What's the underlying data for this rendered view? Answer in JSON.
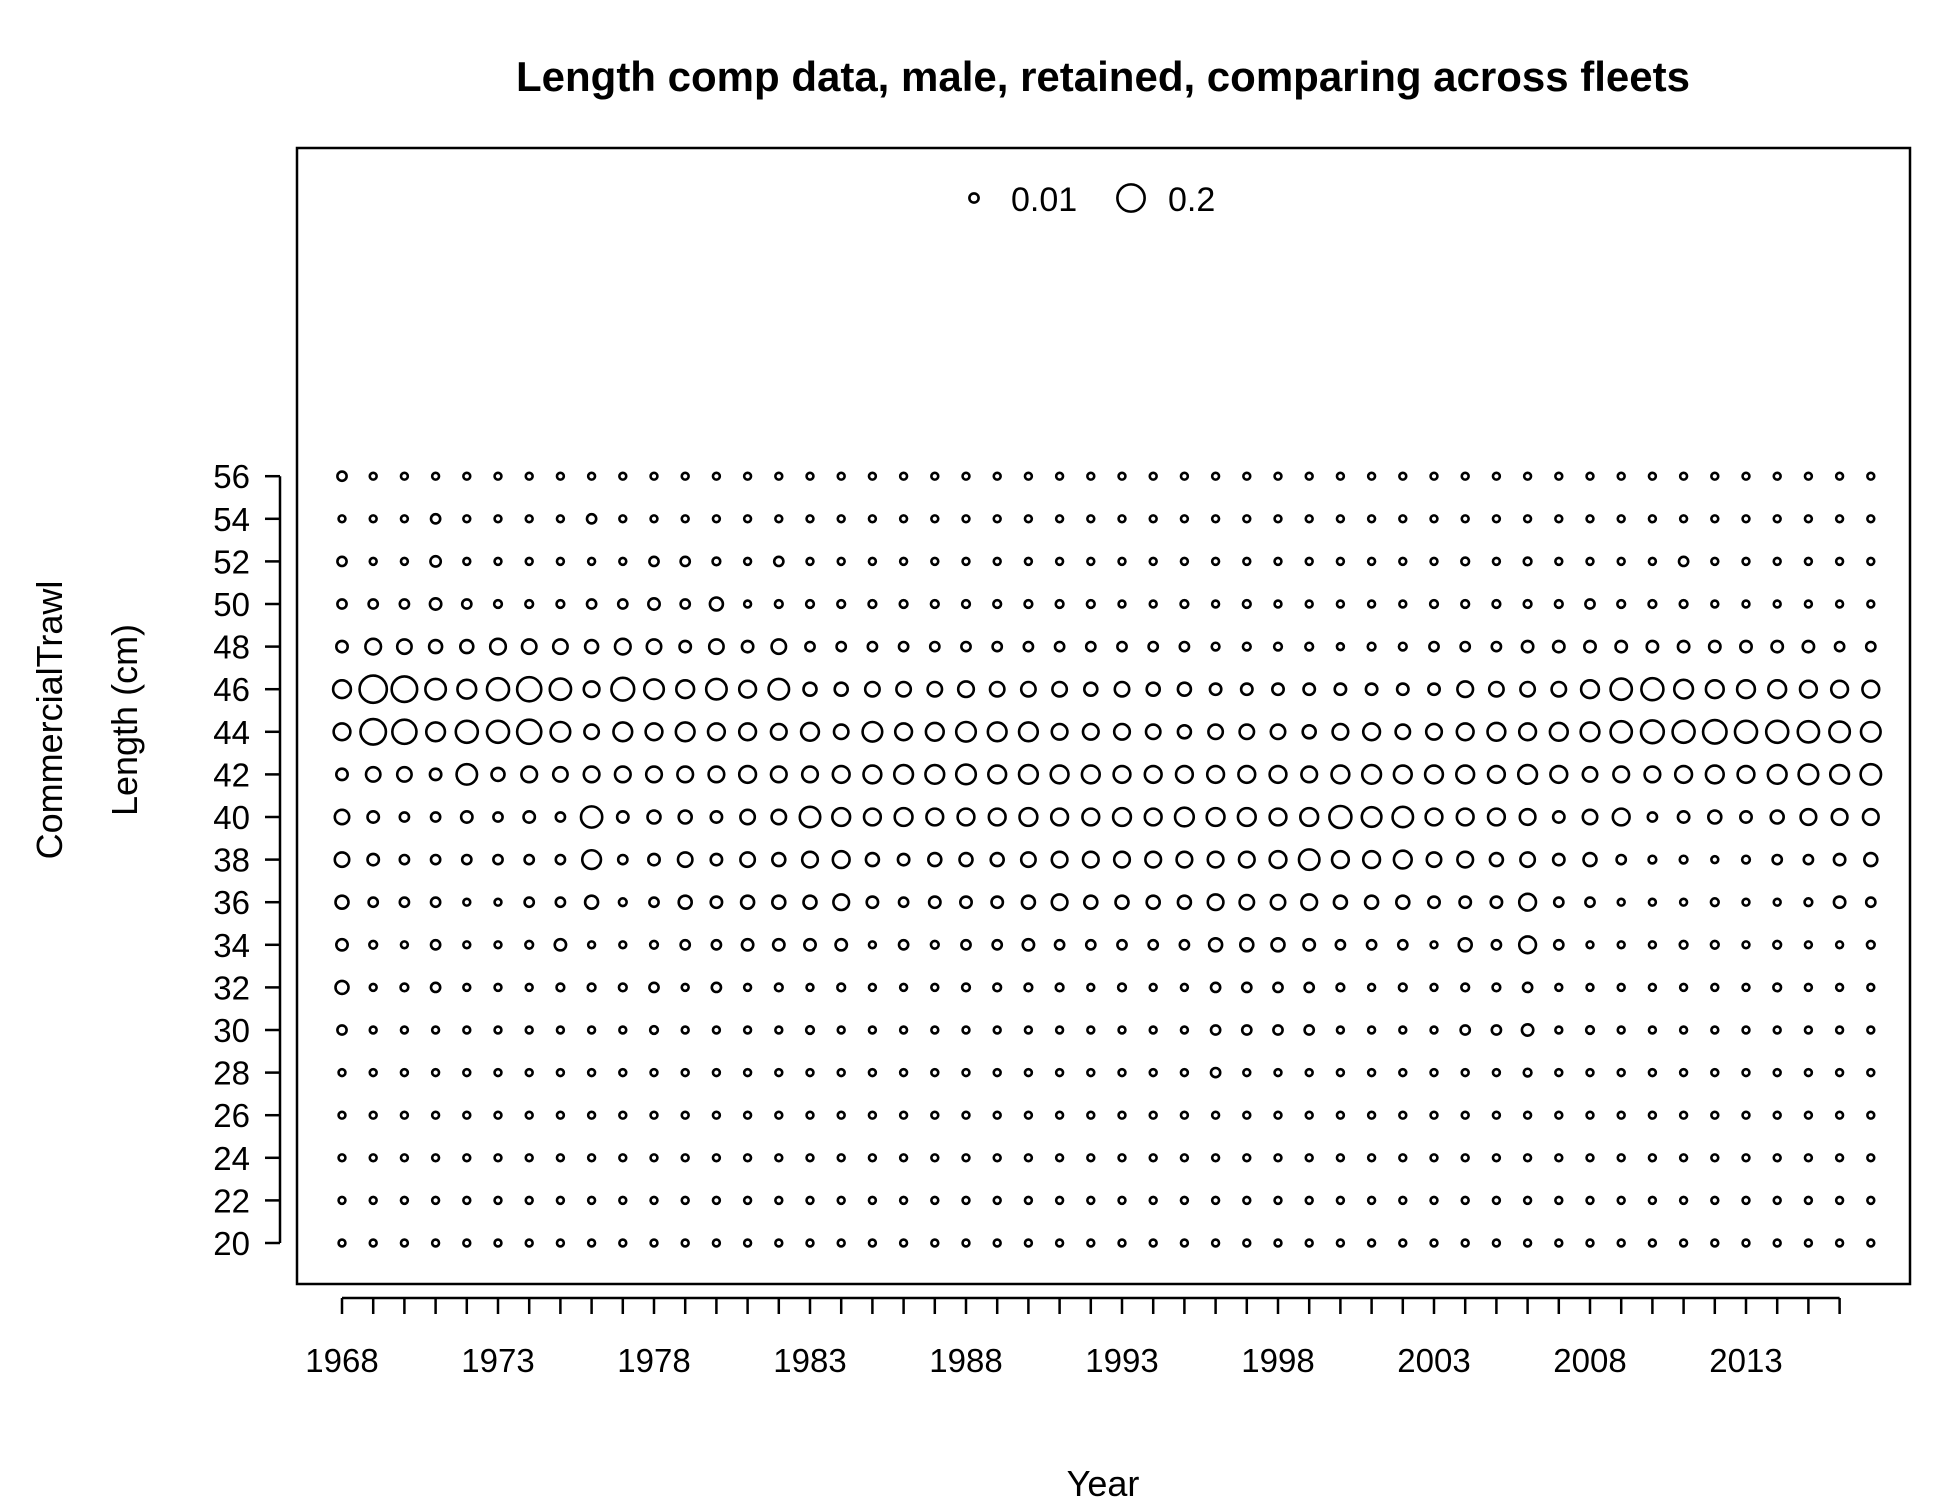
{
  "chart_data": {
    "type": "scatter",
    "subtype": "bubble",
    "title": "Length comp data, male, retained, comparing across fleets",
    "xlabel": "Year",
    "ylabel": "Length (cm)",
    "fleet_label": "CommercialTrawl",
    "xticks": [
      "1968",
      "1973",
      "1978",
      "1983",
      "1988",
      "1993",
      "1998",
      "2003",
      "2008",
      "2013"
    ],
    "yticks": [
      "20",
      "22",
      "24",
      "26",
      "28",
      "30",
      "32",
      "34",
      "36",
      "38",
      "40",
      "42",
      "44",
      "46",
      "48",
      "50",
      "52",
      "54",
      "56"
    ],
    "xlim": [
      1967.5,
      2018.5
    ],
    "length_bins": [
      20,
      22,
      24,
      26,
      28,
      30,
      32,
      34,
      36,
      38,
      40,
      42,
      44,
      46,
      48,
      50,
      52,
      54,
      56
    ],
    "years": [
      1968,
      1969,
      1970,
      1971,
      1972,
      1973,
      1974,
      1975,
      1976,
      1977,
      1978,
      1979,
      1980,
      1981,
      1982,
      1983,
      1984,
      1985,
      1986,
      1987,
      1988,
      1989,
      1990,
      1991,
      1992,
      1993,
      1994,
      1995,
      1996,
      1997,
      1998,
      1999,
      2000,
      2001,
      2002,
      2003,
      2004,
      2005,
      2006,
      2007,
      2008,
      2009,
      2010,
      2011,
      2012,
      2013,
      2014,
      2015,
      2016,
      2017
    ],
    "legend": {
      "placement": "top",
      "entries": [
        {
          "label": "0.01",
          "value": 0.01
        },
        {
          "label": "0.2",
          "value": 0.2
        }
      ]
    },
    "proportion_rows": {
      "56": [
        0.01,
        0.003,
        0.003,
        0.003,
        0.003,
        0.003,
        0.003,
        0.003,
        0.003,
        0.003,
        0.003,
        0.003,
        0.003,
        0.003,
        0.003,
        0.003,
        0.003,
        0.003,
        0.003,
        0.003,
        0.003,
        0.003,
        0.003,
        0.003,
        0.003,
        0.003,
        0.003,
        0.003,
        0.003,
        0.003,
        0.003,
        0.003,
        0.003,
        0.003,
        0.003,
        0.003,
        0.003,
        0.003,
        0.003,
        0.003,
        0.003,
        0.003,
        0.003,
        0.003,
        0.003,
        0.003,
        0.003,
        0.003,
        0.003,
        0.003
      ],
      "54": [
        0.003,
        0.003,
        0.003,
        0.01,
        0.003,
        0.003,
        0.003,
        0.003,
        0.01,
        0.003,
        0.003,
        0.003,
        0.003,
        0.003,
        0.003,
        0.003,
        0.003,
        0.003,
        0.003,
        0.003,
        0.003,
        0.003,
        0.003,
        0.003,
        0.003,
        0.003,
        0.003,
        0.003,
        0.003,
        0.003,
        0.003,
        0.003,
        0.003,
        0.003,
        0.003,
        0.003,
        0.003,
        0.003,
        0.003,
        0.003,
        0.003,
        0.003,
        0.003,
        0.003,
        0.003,
        0.003,
        0.003,
        0.003,
        0.003,
        0.003
      ],
      "52": [
        0.01,
        0.003,
        0.003,
        0.015,
        0.003,
        0.003,
        0.003,
        0.003,
        0.003,
        0.003,
        0.01,
        0.01,
        0.005,
        0.003,
        0.01,
        0.003,
        0.003,
        0.003,
        0.003,
        0.003,
        0.003,
        0.003,
        0.003,
        0.003,
        0.003,
        0.003,
        0.003,
        0.003,
        0.003,
        0.003,
        0.003,
        0.003,
        0.003,
        0.003,
        0.003,
        0.003,
        0.005,
        0.003,
        0.005,
        0.003,
        0.003,
        0.003,
        0.003,
        0.01,
        0.003,
        0.003,
        0.003,
        0.003,
        0.003,
        0.003
      ],
      "50": [
        0.01,
        0.01,
        0.01,
        0.02,
        0.01,
        0.005,
        0.005,
        0.005,
        0.01,
        0.01,
        0.02,
        0.01,
        0.03,
        0.003,
        0.005,
        0.005,
        0.005,
        0.005,
        0.005,
        0.005,
        0.005,
        0.005,
        0.005,
        0.005,
        0.005,
        0.003,
        0.003,
        0.005,
        0.003,
        0.005,
        0.003,
        0.003,
        0.003,
        0.003,
        0.003,
        0.005,
        0.005,
        0.005,
        0.005,
        0.005,
        0.01,
        0.005,
        0.005,
        0.005,
        0.003,
        0.003,
        0.003,
        0.003,
        0.003,
        0.003
      ],
      "48": [
        0.02,
        0.05,
        0.04,
        0.03,
        0.03,
        0.05,
        0.04,
        0.04,
        0.03,
        0.05,
        0.04,
        0.02,
        0.04,
        0.02,
        0.04,
        0.01,
        0.01,
        0.01,
        0.01,
        0.01,
        0.01,
        0.01,
        0.01,
        0.01,
        0.01,
        0.01,
        0.01,
        0.01,
        0.005,
        0.005,
        0.005,
        0.005,
        0.003,
        0.005,
        0.005,
        0.01,
        0.01,
        0.01,
        0.02,
        0.02,
        0.02,
        0.02,
        0.02,
        0.02,
        0.02,
        0.02,
        0.02,
        0.02,
        0.01,
        0.01
      ],
      "46": [
        0.07,
        0.2,
        0.17,
        0.1,
        0.08,
        0.12,
        0.15,
        0.11,
        0.05,
        0.13,
        0.09,
        0.07,
        0.1,
        0.06,
        0.1,
        0.03,
        0.03,
        0.04,
        0.04,
        0.04,
        0.05,
        0.04,
        0.04,
        0.04,
        0.03,
        0.04,
        0.03,
        0.03,
        0.02,
        0.02,
        0.02,
        0.02,
        0.02,
        0.02,
        0.02,
        0.02,
        0.05,
        0.04,
        0.04,
        0.04,
        0.07,
        0.11,
        0.12,
        0.08,
        0.07,
        0.07,
        0.07,
        0.06,
        0.06,
        0.06
      ],
      "44": [
        0.06,
        0.17,
        0.15,
        0.08,
        0.12,
        0.12,
        0.15,
        0.09,
        0.04,
        0.08,
        0.06,
        0.08,
        0.06,
        0.06,
        0.05,
        0.07,
        0.04,
        0.09,
        0.06,
        0.07,
        0.09,
        0.08,
        0.08,
        0.05,
        0.05,
        0.05,
        0.04,
        0.03,
        0.04,
        0.04,
        0.04,
        0.03,
        0.05,
        0.06,
        0.04,
        0.05,
        0.06,
        0.07,
        0.06,
        0.07,
        0.08,
        0.11,
        0.13,
        0.12,
        0.14,
        0.12,
        0.12,
        0.11,
        0.1,
        0.09
      ],
      "42": [
        0.02,
        0.04,
        0.04,
        0.02,
        0.1,
        0.03,
        0.05,
        0.04,
        0.05,
        0.05,
        0.05,
        0.05,
        0.05,
        0.06,
        0.05,
        0.05,
        0.06,
        0.07,
        0.08,
        0.08,
        0.09,
        0.07,
        0.08,
        0.07,
        0.07,
        0.06,
        0.06,
        0.06,
        0.06,
        0.06,
        0.06,
        0.05,
        0.07,
        0.08,
        0.07,
        0.07,
        0.07,
        0.06,
        0.08,
        0.06,
        0.04,
        0.05,
        0.05,
        0.06,
        0.07,
        0.06,
        0.08,
        0.09,
        0.08,
        0.1
      ],
      "40": [
        0.04,
        0.02,
        0.01,
        0.01,
        0.02,
        0.01,
        0.02,
        0.01,
        0.11,
        0.02,
        0.03,
        0.03,
        0.02,
        0.04,
        0.04,
        0.1,
        0.07,
        0.06,
        0.07,
        0.06,
        0.06,
        0.06,
        0.07,
        0.06,
        0.06,
        0.07,
        0.06,
        0.08,
        0.07,
        0.07,
        0.06,
        0.07,
        0.12,
        0.09,
        0.1,
        0.06,
        0.06,
        0.06,
        0.05,
        0.02,
        0.04,
        0.06,
        0.01,
        0.02,
        0.03,
        0.02,
        0.03,
        0.05,
        0.05,
        0.05
      ],
      "38": [
        0.04,
        0.02,
        0.01,
        0.01,
        0.01,
        0.01,
        0.01,
        0.01,
        0.08,
        0.01,
        0.02,
        0.04,
        0.02,
        0.04,
        0.03,
        0.05,
        0.06,
        0.03,
        0.02,
        0.03,
        0.03,
        0.03,
        0.04,
        0.05,
        0.05,
        0.05,
        0.05,
        0.05,
        0.05,
        0.05,
        0.06,
        0.1,
        0.06,
        0.06,
        0.07,
        0.04,
        0.05,
        0.03,
        0.04,
        0.02,
        0.03,
        0.01,
        0.005,
        0.005,
        0.003,
        0.005,
        0.01,
        0.01,
        0.02,
        0.03
      ],
      "36": [
        0.03,
        0.01,
        0.01,
        0.01,
        0.003,
        0.003,
        0.01,
        0.01,
        0.03,
        0.005,
        0.01,
        0.03,
        0.02,
        0.03,
        0.03,
        0.03,
        0.05,
        0.02,
        0.01,
        0.02,
        0.02,
        0.02,
        0.03,
        0.05,
        0.03,
        0.03,
        0.03,
        0.03,
        0.05,
        0.04,
        0.04,
        0.05,
        0.03,
        0.03,
        0.03,
        0.02,
        0.02,
        0.02,
        0.06,
        0.01,
        0.01,
        0.003,
        0.003,
        0.003,
        0.005,
        0.003,
        0.003,
        0.005,
        0.02,
        0.01
      ],
      "34": [
        0.02,
        0.005,
        0.003,
        0.01,
        0.003,
        0.003,
        0.005,
        0.02,
        0.003,
        0.003,
        0.005,
        0.01,
        0.01,
        0.02,
        0.02,
        0.02,
        0.02,
        0.003,
        0.01,
        0.005,
        0.01,
        0.01,
        0.02,
        0.01,
        0.01,
        0.01,
        0.01,
        0.01,
        0.03,
        0.03,
        0.03,
        0.02,
        0.01,
        0.01,
        0.01,
        0.003,
        0.03,
        0.01,
        0.06,
        0.01,
        0.003,
        0.003,
        0.003,
        0.005,
        0.005,
        0.003,
        0.005,
        0.003,
        0.003,
        0.005
      ],
      "32": [
        0.03,
        0.003,
        0.005,
        0.01,
        0.003,
        0.003,
        0.003,
        0.005,
        0.005,
        0.005,
        0.01,
        0.003,
        0.01,
        0.003,
        0.005,
        0.003,
        0.005,
        0.003,
        0.003,
        0.003,
        0.005,
        0.005,
        0.005,
        0.005,
        0.003,
        0.005,
        0.003,
        0.003,
        0.01,
        0.01,
        0.01,
        0.01,
        0.005,
        0.003,
        0.005,
        0.003,
        0.005,
        0.005,
        0.01,
        0.003,
        0.003,
        0.003,
        0.003,
        0.003,
        0.003,
        0.003,
        0.005,
        0.003,
        0.003,
        0.003
      ],
      "30": [
        0.01,
        0.003,
        0.003,
        0.003,
        0.003,
        0.003,
        0.003,
        0.003,
        0.003,
        0.003,
        0.005,
        0.003,
        0.003,
        0.003,
        0.003,
        0.005,
        0.003,
        0.003,
        0.003,
        0.003,
        0.003,
        0.003,
        0.003,
        0.003,
        0.003,
        0.003,
        0.003,
        0.003,
        0.01,
        0.01,
        0.01,
        0.01,
        0.003,
        0.003,
        0.003,
        0.003,
        0.01,
        0.01,
        0.02,
        0.003,
        0.005,
        0.003,
        0.003,
        0.003,
        0.003,
        0.003,
        0.003,
        0.003,
        0.003,
        0.003
      ],
      "28": [
        0.003,
        0.003,
        0.003,
        0.003,
        0.003,
        0.003,
        0.003,
        0.003,
        0.003,
        0.003,
        0.003,
        0.003,
        0.003,
        0.003,
        0.003,
        0.003,
        0.003,
        0.003,
        0.003,
        0.003,
        0.003,
        0.003,
        0.003,
        0.003,
        0.003,
        0.003,
        0.003,
        0.003,
        0.01,
        0.003,
        0.003,
        0.003,
        0.003,
        0.003,
        0.003,
        0.003,
        0.003,
        0.003,
        0.005,
        0.003,
        0.003,
        0.003,
        0.003,
        0.003,
        0.003,
        0.003,
        0.003,
        0.003,
        0.003,
        0.003
      ],
      "26": [
        0.003,
        0.003,
        0.003,
        0.003,
        0.003,
        0.003,
        0.003,
        0.003,
        0.003,
        0.003,
        0.003,
        0.003,
        0.003,
        0.003,
        0.003,
        0.003,
        0.003,
        0.003,
        0.003,
        0.003,
        0.003,
        0.003,
        0.003,
        0.003,
        0.003,
        0.003,
        0.003,
        0.003,
        0.003,
        0.003,
        0.003,
        0.003,
        0.003,
        0.003,
        0.003,
        0.003,
        0.003,
        0.003,
        0.003,
        0.003,
        0.003,
        0.003,
        0.003,
        0.003,
        0.003,
        0.003,
        0.003,
        0.003,
        0.003,
        0.003
      ],
      "24": [
        0.003,
        0.003,
        0.003,
        0.003,
        0.003,
        0.003,
        0.003,
        0.003,
        0.003,
        0.003,
        0.003,
        0.003,
        0.003,
        0.003,
        0.003,
        0.003,
        0.003,
        0.003,
        0.003,
        0.003,
        0.003,
        0.003,
        0.003,
        0.003,
        0.003,
        0.003,
        0.003,
        0.003,
        0.003,
        0.003,
        0.003,
        0.003,
        0.003,
        0.003,
        0.003,
        0.003,
        0.003,
        0.003,
        0.003,
        0.003,
        0.003,
        0.003,
        0.003,
        0.003,
        0.003,
        0.003,
        0.003,
        0.003,
        0.003,
        0.003
      ],
      "22": [
        0.003,
        0.003,
        0.003,
        0.003,
        0.003,
        0.003,
        0.003,
        0.003,
        0.003,
        0.003,
        0.003,
        0.003,
        0.003,
        0.003,
        0.003,
        0.003,
        0.003,
        0.003,
        0.003,
        0.003,
        0.003,
        0.003,
        0.003,
        0.003,
        0.003,
        0.003,
        0.003,
        0.003,
        0.003,
        0.003,
        0.003,
        0.003,
        0.003,
        0.003,
        0.003,
        0.003,
        0.003,
        0.003,
        0.003,
        0.003,
        0.003,
        0.003,
        0.003,
        0.003,
        0.003,
        0.003,
        0.003,
        0.003,
        0.003,
        0.003
      ],
      "20": [
        0.003,
        0.003,
        0.003,
        0.003,
        0.003,
        0.003,
        0.003,
        0.003,
        0.003,
        0.003,
        0.003,
        0.003,
        0.003,
        0.003,
        0.003,
        0.003,
        0.003,
        0.003,
        0.003,
        0.003,
        0.003,
        0.003,
        0.003,
        0.003,
        0.003,
        0.003,
        0.003,
        0.003,
        0.003,
        0.003,
        0.003,
        0.003,
        0.003,
        0.003,
        0.003,
        0.003,
        0.003,
        0.003,
        0.003,
        0.003,
        0.003,
        0.003,
        0.003,
        0.003,
        0.003,
        0.003,
        0.003,
        0.003,
        0.003,
        0.003
      ]
    }
  }
}
